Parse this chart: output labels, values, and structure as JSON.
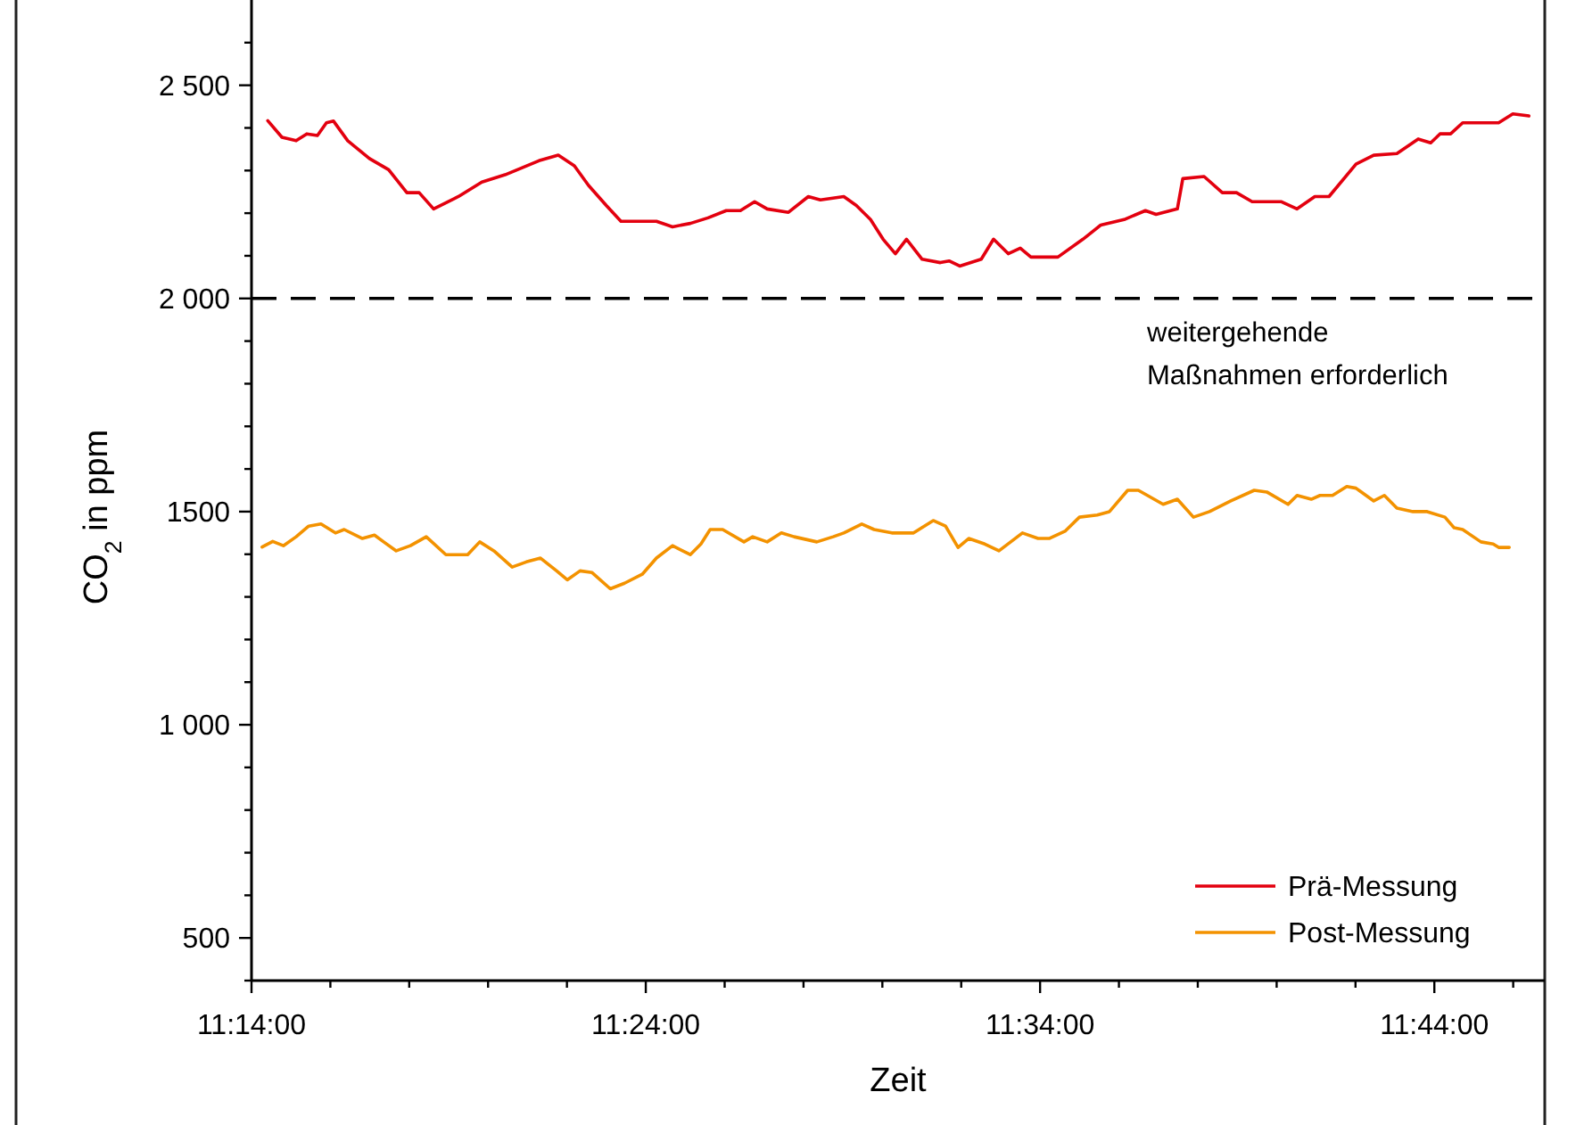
{
  "chart_data": {
    "type": "line",
    "xlabel": "Zeit",
    "ylabel": "CO$_{2}$ in ppm",
    "xlim": [
      11.2333333,
      11.78
    ],
    "ylim": [
      400,
      2700
    ],
    "xticks": [
      {
        "value": 11.2333333,
        "label": "11:14:00"
      },
      {
        "value": 11.2666667,
        "label": null
      },
      {
        "value": 11.3,
        "label": null
      },
      {
        "value": 11.3333333,
        "label": null
      },
      {
        "value": 11.3666667,
        "label": null
      },
      {
        "value": 11.4,
        "label": "11:24:00"
      },
      {
        "value": 11.4333333,
        "label": null
      },
      {
        "value": 11.4666667,
        "label": null
      },
      {
        "value": 11.5,
        "label": null
      },
      {
        "value": 11.5333333,
        "label": null
      },
      {
        "value": 11.5666667,
        "label": "11:34:00"
      },
      {
        "value": 11.6,
        "label": null
      },
      {
        "value": 11.6333333,
        "label": null
      },
      {
        "value": 11.6666667,
        "label": null
      },
      {
        "value": 11.7,
        "label": null
      },
      {
        "value": 11.7333333,
        "label": "11:44:00"
      },
      {
        "value": 11.7666667,
        "label": null
      }
    ],
    "yticks": [
      {
        "value": 400,
        "label": null
      },
      500,
      {
        "value": 600,
        "label": null
      },
      {
        "value": 700,
        "label": null
      },
      {
        "value": 800,
        "label": null
      },
      {
        "value": 900,
        "label": null
      },
      {
        "value": 1000,
        "label": "1 000"
      },
      {
        "value": 1100,
        "label": null
      },
      {
        "value": 1200,
        "label": null
      },
      {
        "value": 1300,
        "label": null
      },
      {
        "value": 1400,
        "label": null
      },
      1500,
      {
        "value": 1600,
        "label": null
      },
      {
        "value": 1700,
        "label": null
      },
      {
        "value": 1800,
        "label": null
      },
      {
        "value": 1900,
        "label": null
      },
      {
        "value": 2000,
        "label": "2 000"
      },
      {
        "value": 2100,
        "label": null
      },
      {
        "value": 2200,
        "label": null
      },
      {
        "value": 2300,
        "label": null
      },
      {
        "value": 2400,
        "label": null
      },
      {
        "value": 2500,
        "label": "2 500"
      },
      {
        "value": 2600,
        "label": null
      }
    ],
    "legend": "bottom right",
    "grid": false,
    "ref_lines": [
      {
        "axis": "y",
        "value": 2000,
        "label": "weitergehende\nMaßnahmen erforderlich",
        "color": "#000000",
        "line_style": "dashed"
      }
    ],
    "series": [
      {
        "name": "Prä-Messung",
        "color": "#e3000f",
        "x": [
          11.2402,
          11.2462,
          11.2522,
          11.2567,
          11.2612,
          11.265,
          11.268,
          11.274,
          11.2832,
          11.2913,
          11.299,
          11.3042,
          11.3103,
          11.3208,
          11.3307,
          11.3405,
          11.348,
          11.3548,
          11.363,
          11.3698,
          11.3758,
          11.3833,
          11.3895,
          11.4045,
          11.4113,
          11.4188,
          11.4263,
          11.434,
          11.44,
          11.446,
          11.4513,
          11.4603,
          11.4687,
          11.4738,
          11.4837,
          11.489,
          11.495,
          11.5003,
          11.5055,
          11.5102,
          11.5168,
          11.5245,
          11.5282,
          11.5327,
          11.5418,
          11.547,
          11.5532,
          11.5583,
          11.5628,
          11.5742,
          11.5848,
          11.5923,
          11.6022,
          11.6112,
          11.6157,
          11.6247,
          11.627,
          11.636,
          11.6437,
          11.6497,
          11.6563,
          11.6685,
          11.6753,
          11.6828,
          11.6888,
          11.7002,
          11.7077,
          11.7175,
          11.7265,
          11.7318,
          11.7357,
          11.7402,
          11.7453,
          11.753,
          11.7605,
          11.7665,
          11.7733
        ],
        "values": [
          2417,
          2378,
          2370,
          2386,
          2382,
          2412,
          2416,
          2370,
          2328,
          2302,
          2248,
          2248,
          2210,
          2239,
          2273,
          2290,
          2307,
          2323,
          2336,
          2311,
          2265,
          2218,
          2181,
          2181,
          2168,
          2176,
          2189,
          2206,
          2206,
          2227,
          2210,
          2202,
          2239,
          2231,
          2239,
          2218,
          2185,
          2139,
          2105,
          2139,
          2092,
          2084,
          2088,
          2076,
          2092,
          2139,
          2105,
          2118,
          2097,
          2097,
          2139,
          2172,
          2185,
          2206,
          2197,
          2210,
          2281,
          2286,
          2248,
          2248,
          2227,
          2227,
          2210,
          2239,
          2239,
          2315,
          2336,
          2340,
          2374,
          2365,
          2386,
          2386,
          2412,
          2412,
          2412,
          2433,
          2428
        ]
      },
      {
        "name": "Post-Messung",
        "color": "#f39200",
        "x": [
          11.2378,
          11.2423,
          11.2468,
          11.2522,
          11.2575,
          11.2627,
          11.2688,
          11.2725,
          11.2802,
          11.2853,
          11.2892,
          11.2945,
          11.3005,
          11.3072,
          11.3155,
          11.3247,
          11.3298,
          11.3358,
          11.3435,
          11.3495,
          11.3555,
          11.3623,
          11.3668,
          11.3722,
          11.3773,
          11.385,
          11.391,
          11.3985,
          11.4045,
          11.4113,
          11.4188,
          11.4233,
          11.4272,
          11.4325,
          11.4415,
          11.4452,
          11.4513,
          11.4573,
          11.4627,
          11.4723,
          11.4792,
          11.4837,
          11.4913,
          11.4965,
          11.504,
          11.5132,
          11.5215,
          11.5267,
          11.532,
          11.5365,
          11.5433,
          11.5493,
          11.5592,
          11.5658,
          11.5705,
          11.5772,
          11.5833,
          11.5908,
          11.596,
          11.6037,
          11.6082,
          11.6187,
          11.6247,
          11.6315,
          11.6383,
          11.6473,
          11.6572,
          11.6625,
          11.6715,
          11.6753,
          11.6813,
          11.685,
          11.6903,
          11.6963,
          11.7002,
          11.7077,
          11.7122,
          11.7175,
          11.7243,
          11.7303,
          11.7378,
          11.7417,
          11.7453,
          11.753,
          11.7582,
          11.7605,
          11.765
        ],
        "values": [
          1417,
          1430,
          1420,
          1441,
          1466,
          1471,
          1450,
          1458,
          1437,
          1445,
          1429,
          1408,
          1420,
          1441,
          1399,
          1399,
          1429,
          1408,
          1370,
          1382,
          1391,
          1361,
          1340,
          1361,
          1357,
          1319,
          1332,
          1353,
          1391,
          1420,
          1399,
          1424,
          1458,
          1458,
          1429,
          1441,
          1429,
          1450,
          1441,
          1429,
          1441,
          1450,
          1471,
          1458,
          1450,
          1450,
          1479,
          1466,
          1416,
          1437,
          1424,
          1408,
          1450,
          1437,
          1437,
          1454,
          1487,
          1492,
          1500,
          1550,
          1550,
          1517,
          1529,
          1487,
          1500,
          1525,
          1550,
          1546,
          1517,
          1538,
          1529,
          1538,
          1538,
          1559,
          1555,
          1525,
          1538,
          1508,
          1500,
          1500,
          1487,
          1462,
          1458,
          1429,
          1424,
          1416,
          1416
        ]
      }
    ]
  }
}
